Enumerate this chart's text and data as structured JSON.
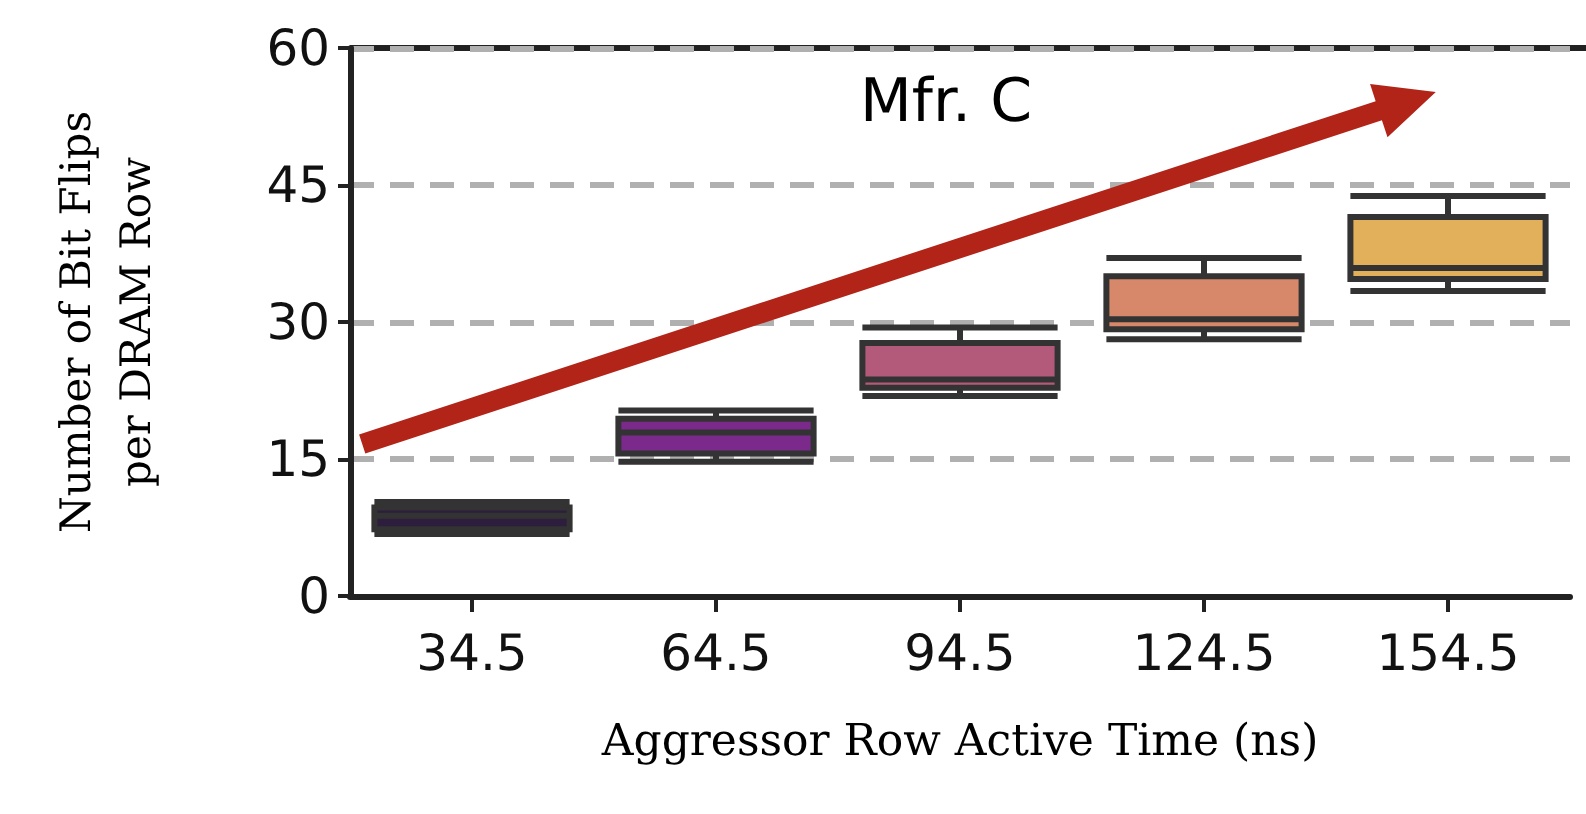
{
  "chart_data": {
    "type": "box",
    "xlabel": "Aggressor Row Active Time (ns)",
    "ylabel": "Number of Bit Flips\nper DRAM Row",
    "annotations": [
      "Mfr. C"
    ],
    "categories": [
      "34.5",
      "64.5",
      "94.5",
      "124.5",
      "154.5"
    ],
    "colors": [
      "#2d1e3e",
      "#7b2a8c",
      "#b35a7a",
      "#d8886a",
      "#e2b05a"
    ],
    "boxes": [
      {
        "low": 6.8,
        "q1": 7.3,
        "median": 8.8,
        "q3": 9.7,
        "high": 10.3
      },
      {
        "low": 14.7,
        "q1": 15.6,
        "median": 17.9,
        "q3": 19.4,
        "high": 20.3
      },
      {
        "low": 21.9,
        "q1": 22.8,
        "median": 23.7,
        "q3": 27.7,
        "high": 29.4
      },
      {
        "low": 28.1,
        "q1": 29.2,
        "median": 30.3,
        "q3": 35.0,
        "high": 37.0
      },
      {
        "low": 33.4,
        "q1": 34.7,
        "median": 35.9,
        "q3": 41.5,
        "high": 43.8
      }
    ],
    "ylim": [
      0,
      60
    ],
    "yticks": [
      0,
      15,
      30,
      45,
      60
    ],
    "grid": "y"
  }
}
